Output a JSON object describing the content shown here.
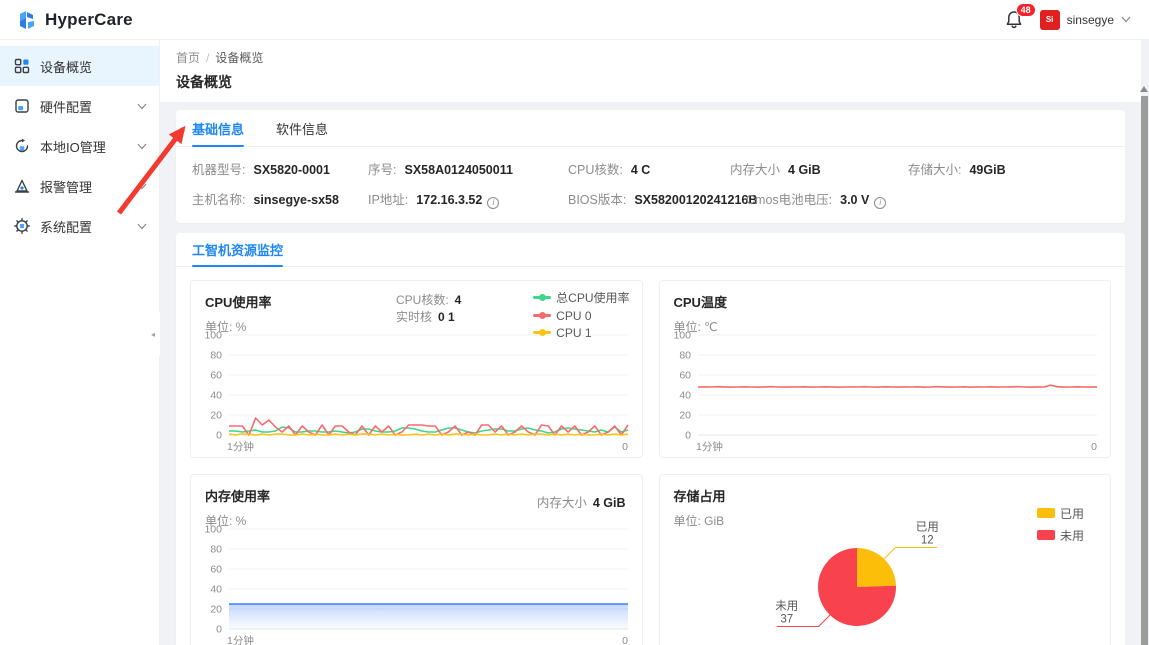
{
  "header": {
    "brand": "HyperCare",
    "notification_count": "48",
    "username": "sinsegye",
    "avatar_text": "Si"
  },
  "sidebar": {
    "items": [
      {
        "label": "设备概览",
        "active": true,
        "expandable": false
      },
      {
        "label": "硬件配置",
        "active": false,
        "expandable": true
      },
      {
        "label": "本地IO管理",
        "active": false,
        "expandable": true
      },
      {
        "label": "报警管理",
        "active": false,
        "expandable": true
      },
      {
        "label": "系统配置",
        "active": false,
        "expandable": true
      }
    ]
  },
  "breadcrumb": {
    "home": "首页",
    "separator": "/",
    "current": "设备概览"
  },
  "page": {
    "title": "设备概览"
  },
  "info_card": {
    "tabs": [
      {
        "label": "基础信息",
        "active": true
      },
      {
        "label": "软件信息",
        "active": false
      }
    ],
    "fields_row1": [
      {
        "label": "机器型号:",
        "value": "SX5820-0001"
      },
      {
        "label": "序号:",
        "value": "SX58A0124050011"
      },
      {
        "label": "CPU核数:",
        "value": "4 C"
      },
      {
        "label": "内存大小",
        "value": "4 GiB"
      },
      {
        "label": "存储大小:",
        "value": "49GiB"
      }
    ],
    "fields_row2": [
      {
        "label": "主机名称:",
        "value": "sinsegye-sx58"
      },
      {
        "label": "IP地址:",
        "value": "172.16.3.52",
        "info": true
      },
      {
        "label": "BIOS版本:",
        "value": "SX58200120241216B"
      },
      {
        "label": "Cmos电池电压:",
        "value": "3.0 V",
        "info": true
      }
    ]
  },
  "monitor_card": {
    "tab": "工智机资源监控"
  },
  "colors": {
    "primary": "#1f87f5",
    "badge": "#f5222d",
    "arrow": "#f23a2e"
  },
  "chart_data": [
    {
      "id": "cpu_usage",
      "type": "line",
      "title": "CPU使用率",
      "unit_label": "单位: %",
      "meta": {
        "cores_label": "CPU核数:",
        "cores_value": "4",
        "realtime_label": "实时核",
        "realtime_value": "0 1"
      },
      "legend": [
        {
          "name": "总CPU使用率",
          "color": "#3dd68c"
        },
        {
          "name": "CPU 0",
          "color": "#f56c6c"
        },
        {
          "name": "CPU 1",
          "color": "#fbc40f"
        }
      ],
      "ylim": [
        0,
        100
      ],
      "yticks": [
        0,
        20,
        40,
        60,
        80,
        100
      ],
      "x_left_label": "1分钟",
      "x_right_label": "0",
      "grid": true,
      "legend_position": "top-right",
      "series": [
        {
          "name": "总CPU使用率",
          "color": "#3dd68c",
          "values": [
            4,
            4,
            3,
            4,
            5,
            3,
            3,
            4,
            8,
            7,
            3,
            3,
            4,
            4,
            3,
            3,
            4,
            3,
            2,
            3,
            6,
            6,
            4,
            3,
            3,
            4,
            7,
            7,
            6,
            4,
            3,
            3,
            5,
            7,
            7,
            5,
            3,
            2,
            4,
            5,
            6,
            6,
            4,
            4,
            6,
            7,
            5,
            4,
            2,
            3,
            6,
            7,
            6,
            5,
            4,
            3,
            5,
            3,
            8,
            3,
            5
          ]
        },
        {
          "name": "CPU 0",
          "color": "#f56c6c",
          "values": [
            9,
            9,
            9,
            0,
            17,
            10,
            15,
            8,
            3,
            9,
            0,
            9,
            3,
            0,
            10,
            0,
            9,
            9,
            3,
            0,
            9,
            0,
            9,
            3,
            9,
            0,
            3,
            10,
            10,
            10,
            9,
            9,
            0,
            3,
            9,
            0,
            3,
            0,
            10,
            10,
            3,
            9,
            0,
            3,
            9,
            3,
            0,
            10,
            9,
            0,
            9,
            3,
            9,
            0,
            3,
            9,
            0,
            3,
            9,
            0,
            10
          ]
        },
        {
          "name": "CPU 1",
          "color": "#fbc40f",
          "values": [
            1,
            0,
            1,
            1,
            0,
            1,
            0,
            1,
            1,
            0,
            0,
            1,
            0,
            1,
            0,
            0,
            1,
            0,
            1,
            0,
            1,
            1,
            0,
            1,
            0,
            1,
            0,
            0,
            1,
            0,
            1,
            0,
            1,
            0,
            1,
            1,
            0,
            1,
            0,
            0,
            1,
            0,
            1,
            0,
            1,
            0,
            1,
            1,
            0,
            1,
            0,
            1,
            0,
            1,
            0,
            0,
            1,
            0,
            1,
            0,
            1
          ]
        }
      ]
    },
    {
      "id": "cpu_temp",
      "type": "line",
      "title": "CPU温度",
      "unit_label": "单位: ℃",
      "ylim": [
        0,
        100
      ],
      "yticks": [
        0,
        20,
        40,
        60,
        80,
        100
      ],
      "x_left_label": "1分钟",
      "x_right_label": "0",
      "grid": true,
      "series": [
        {
          "name": "CPU温度",
          "color": "#f56c6c",
          "values": [
            47.9,
            48.1,
            48,
            48.3,
            48.1,
            47.8,
            48,
            48.2,
            48,
            47.8,
            48.1,
            48.3,
            48,
            47.9,
            48.1,
            48,
            48.2,
            47.9,
            48,
            48.2,
            48.1,
            47.8,
            48,
            48.1,
            48,
            48.3,
            48,
            47.8,
            48.2,
            48,
            47.9,
            48.1,
            48,
            48.2,
            47.8,
            48,
            48.3,
            48.1,
            47.9,
            48,
            48.2,
            47.8,
            48.1,
            48,
            48.2,
            47.9,
            48,
            48.1,
            48.3,
            48,
            47.8,
            48.1,
            48,
            49.8,
            48.3,
            47.9,
            48,
            48.2,
            48,
            47.9,
            48.1
          ]
        }
      ]
    },
    {
      "id": "memory",
      "type": "line",
      "title": "内存使用率",
      "unit_label": "单位: %",
      "right_label": "内存大小",
      "right_value": "4 GiB",
      "ylim": [
        0,
        100
      ],
      "yticks": [
        0,
        20,
        40,
        60,
        80,
        100
      ],
      "x_left_label": "1分钟",
      "x_right_label": "0",
      "grid": true,
      "series": [
        {
          "name": "内存使用率",
          "color": "#3e7bfa",
          "area": true,
          "values": [
            25,
            25,
            25,
            25,
            25,
            25,
            25,
            25,
            25,
            25,
            25,
            25,
            25,
            25,
            25,
            25,
            25,
            25,
            25,
            25,
            25,
            25,
            25,
            25,
            25,
            25,
            25,
            25,
            25,
            25,
            25,
            25,
            25,
            25,
            25,
            25,
            25,
            25,
            25,
            25,
            25,
            25,
            25,
            25,
            25,
            25,
            25,
            25,
            25,
            25,
            25,
            25,
            25,
            25,
            25,
            25,
            25,
            25,
            25,
            25,
            25
          ]
        }
      ]
    },
    {
      "id": "storage",
      "type": "pie",
      "title": "存储占用",
      "unit_label": "单位: GiB",
      "legend": [
        {
          "name": "已用",
          "color": "#fcbe09"
        },
        {
          "name": "未用",
          "color": "#f8434e"
        }
      ],
      "legend_position": "top-right",
      "slices": [
        {
          "name": "已用",
          "value": 12,
          "color": "#fcbe09"
        },
        {
          "name": "未用",
          "value": 37,
          "color": "#f8434e"
        }
      ]
    }
  ]
}
